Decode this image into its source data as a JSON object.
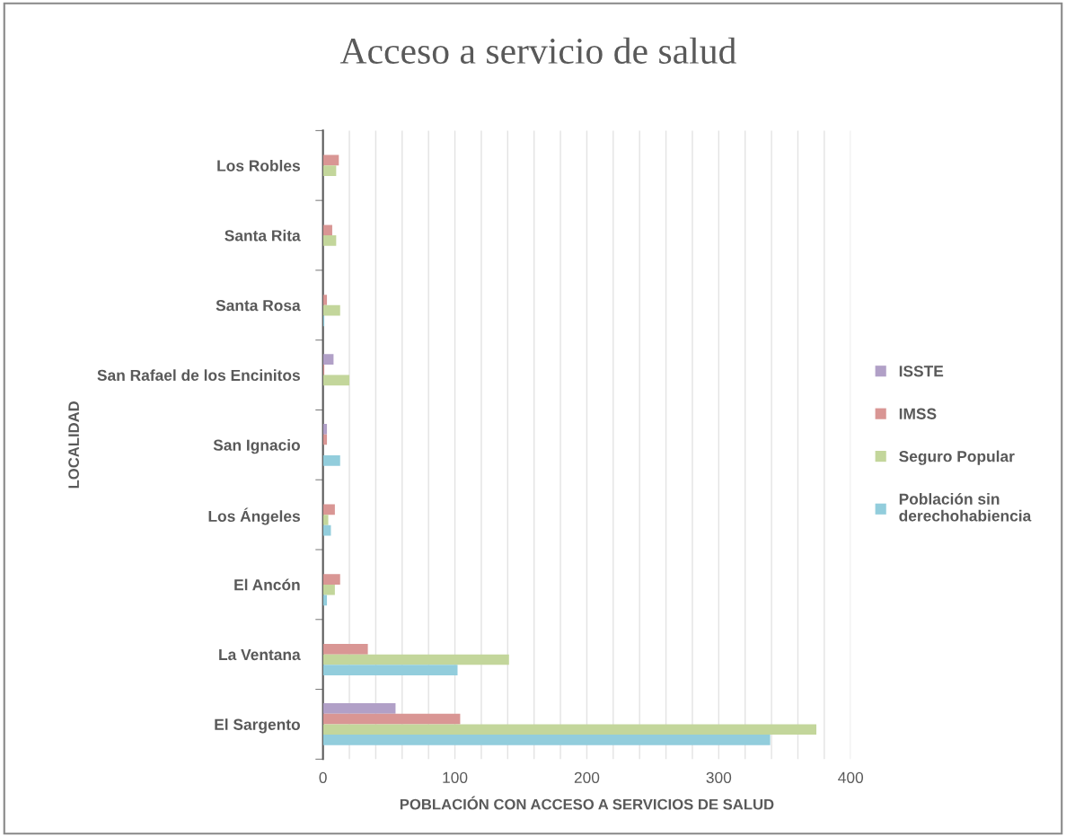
{
  "chart_data": {
    "type": "bar",
    "orientation": "horizontal",
    "title": "Acceso a servicio de salud",
    "xlabel": "POBLACIÓN CON ACCESO A SERVICIOS DE SALUD",
    "ylabel": "LOCALIDAD",
    "categories": [
      "Los Robles",
      "Santa Rita",
      "Santa Rosa",
      "San Rafael de los Encinitos",
      "San Ignacio",
      "Los Ángeles",
      "El Ancón",
      "La Ventana",
      "El Sargento"
    ],
    "series": [
      {
        "name": "ISSTE",
        "color": "#b1a0c7",
        "values": [
          null,
          null,
          null,
          8,
          3,
          null,
          null,
          null,
          55
        ]
      },
      {
        "name": "IMSS",
        "color": "#d99694",
        "values": [
          12,
          7,
          3,
          1,
          3,
          9,
          13,
          34,
          104
        ]
      },
      {
        "name": "Seguro Popular",
        "color": "#c3d69b",
        "values": [
          10,
          10,
          13,
          20,
          null,
          4,
          9,
          141,
          374
        ]
      },
      {
        "name": "Población sin\nderechohabiencia",
        "color": "#92cddc",
        "values": [
          null,
          null,
          1,
          null,
          13,
          6,
          3,
          102,
          339
        ]
      }
    ],
    "xlim": [
      0,
      400
    ],
    "xticks": [
      0,
      {
        "value": 20,
        "label": null
      },
      {
        "value": 40,
        "label": null
      },
      {
        "value": 60,
        "label": null
      },
      {
        "value": 80,
        "label": null
      },
      100,
      {
        "value": 120,
        "label": null
      },
      {
        "value": 140,
        "label": null
      },
      {
        "value": 160,
        "label": null
      },
      {
        "value": 180,
        "label": null
      },
      200,
      {
        "value": 220,
        "label": null
      },
      {
        "value": 240,
        "label": null
      },
      {
        "value": 260,
        "label": null
      },
      {
        "value": 280,
        "label": null
      },
      300,
      {
        "value": 320,
        "label": null
      },
      {
        "value": 340,
        "label": null
      },
      {
        "value": 360,
        "label": null
      },
      {
        "value": 380,
        "label": null
      },
      400
    ],
    "grid": "x",
    "legend": "right"
  }
}
